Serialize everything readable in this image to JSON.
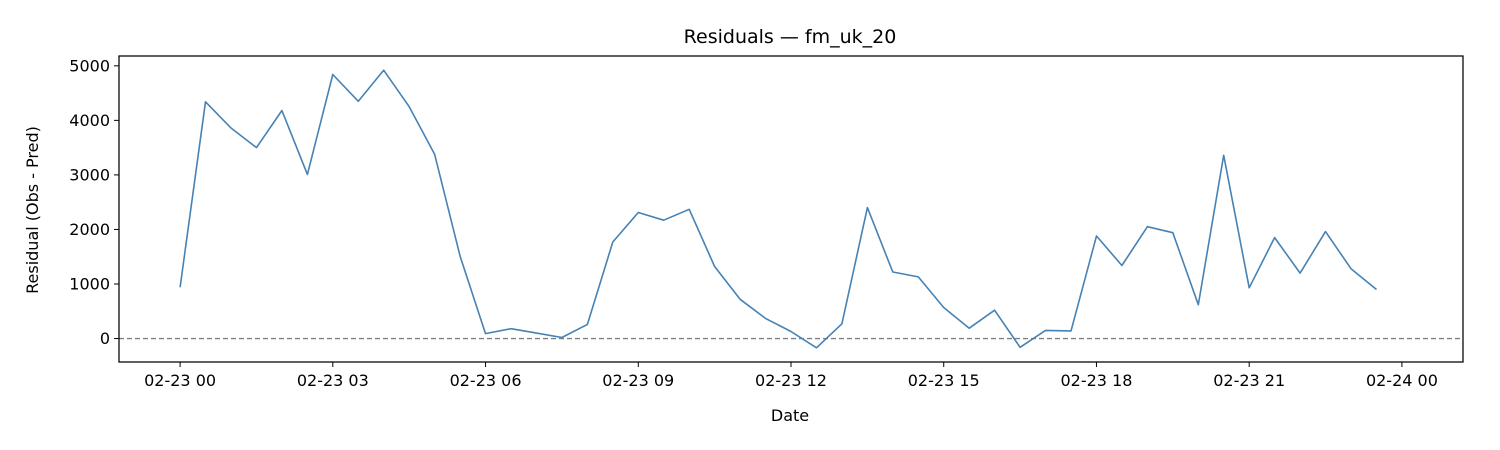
{
  "chart_data": {
    "type": "line",
    "title": "Residuals — fm_uk_20",
    "xlabel": "Date",
    "ylabel": "Residual (Obs - Pred)",
    "xlim": [
      "2023-02-22 22:48",
      "2023-02-24 01:12"
    ],
    "ylim": [
      -430,
      5180
    ],
    "grid": false,
    "x_ticks": [
      {
        "x": "2023-02-23 00:00",
        "label": "02-23 00"
      },
      {
        "x": "2023-02-23 03:00",
        "label": "02-23 03"
      },
      {
        "x": "2023-02-23 06:00",
        "label": "02-23 06"
      },
      {
        "x": "2023-02-23 09:00",
        "label": "02-23 09"
      },
      {
        "x": "2023-02-23 12:00",
        "label": "02-23 12"
      },
      {
        "x": "2023-02-23 15:00",
        "label": "02-23 15"
      },
      {
        "x": "2023-02-23 18:00",
        "label": "02-23 18"
      },
      {
        "x": "2023-02-23 21:00",
        "label": "02-23 21"
      },
      {
        "x": "2023-02-24 00:00",
        "label": "02-24 00"
      }
    ],
    "y_ticks": [
      {
        "y": 0,
        "label": "0"
      },
      {
        "y": 1000,
        "label": "1000"
      },
      {
        "y": 2000,
        "label": "2000"
      },
      {
        "y": 3000,
        "label": "3000"
      },
      {
        "y": 4000,
        "label": "4000"
      },
      {
        "y": 5000,
        "label": "5000"
      }
    ],
    "reference_line": {
      "y": 0,
      "style": "dashed",
      "color": "#808080"
    },
    "series": [
      {
        "color": "#4682b4",
        "points": [
          {
            "x": "2023-02-23 00:00",
            "y": 940
          },
          {
            "x": "2023-02-23 00:30",
            "y": 4340
          },
          {
            "x": "2023-02-23 01:00",
            "y": 3860
          },
          {
            "x": "2023-02-23 01:30",
            "y": 3500
          },
          {
            "x": "2023-02-23 02:00",
            "y": 4180
          },
          {
            "x": "2023-02-23 02:30",
            "y": 3010
          },
          {
            "x": "2023-02-23 03:00",
            "y": 4840
          },
          {
            "x": "2023-02-23 03:30",
            "y": 4350
          },
          {
            "x": "2023-02-23 04:00",
            "y": 4920
          },
          {
            "x": "2023-02-23 04:30",
            "y": 4250
          },
          {
            "x": "2023-02-23 05:00",
            "y": 3380
          },
          {
            "x": "2023-02-23 05:30",
            "y": 1510
          },
          {
            "x": "2023-02-23 06:00",
            "y": 90
          },
          {
            "x": "2023-02-23 06:30",
            "y": 180
          },
          {
            "x": "2023-02-23 07:00",
            "y": 100
          },
          {
            "x": "2023-02-23 07:30",
            "y": 20
          },
          {
            "x": "2023-02-23 08:00",
            "y": 260
          },
          {
            "x": "2023-02-23 08:30",
            "y": 1770
          },
          {
            "x": "2023-02-23 09:00",
            "y": 2310
          },
          {
            "x": "2023-02-23 09:30",
            "y": 2170
          },
          {
            "x": "2023-02-23 10:00",
            "y": 2370
          },
          {
            "x": "2023-02-23 10:30",
            "y": 1320
          },
          {
            "x": "2023-02-23 11:00",
            "y": 720
          },
          {
            "x": "2023-02-23 11:30",
            "y": 370
          },
          {
            "x": "2023-02-23 12:00",
            "y": 130
          },
          {
            "x": "2023-02-23 12:30",
            "y": -170
          },
          {
            "x": "2023-02-23 13:00",
            "y": 270
          },
          {
            "x": "2023-02-23 13:30",
            "y": 2400
          },
          {
            "x": "2023-02-23 14:00",
            "y": 1220
          },
          {
            "x": "2023-02-23 14:30",
            "y": 1130
          },
          {
            "x": "2023-02-23 15:00",
            "y": 570
          },
          {
            "x": "2023-02-23 15:30",
            "y": 190
          },
          {
            "x": "2023-02-23 16:00",
            "y": 520
          },
          {
            "x": "2023-02-23 16:30",
            "y": -160
          },
          {
            "x": "2023-02-23 17:00",
            "y": 150
          },
          {
            "x": "2023-02-23 17:30",
            "y": 140
          },
          {
            "x": "2023-02-23 18:00",
            "y": 1880
          },
          {
            "x": "2023-02-23 18:30",
            "y": 1340
          },
          {
            "x": "2023-02-23 19:00",
            "y": 2050
          },
          {
            "x": "2023-02-23 19:30",
            "y": 1940
          },
          {
            "x": "2023-02-23 20:00",
            "y": 620
          },
          {
            "x": "2023-02-23 20:30",
            "y": 3360
          },
          {
            "x": "2023-02-23 21:00",
            "y": 930
          },
          {
            "x": "2023-02-23 21:30",
            "y": 1850
          },
          {
            "x": "2023-02-23 22:00",
            "y": 1200
          },
          {
            "x": "2023-02-23 22:30",
            "y": 1960
          },
          {
            "x": "2023-02-23 23:00",
            "y": 1280
          },
          {
            "x": "2023-02-23 23:30",
            "y": 900
          }
        ]
      }
    ]
  }
}
